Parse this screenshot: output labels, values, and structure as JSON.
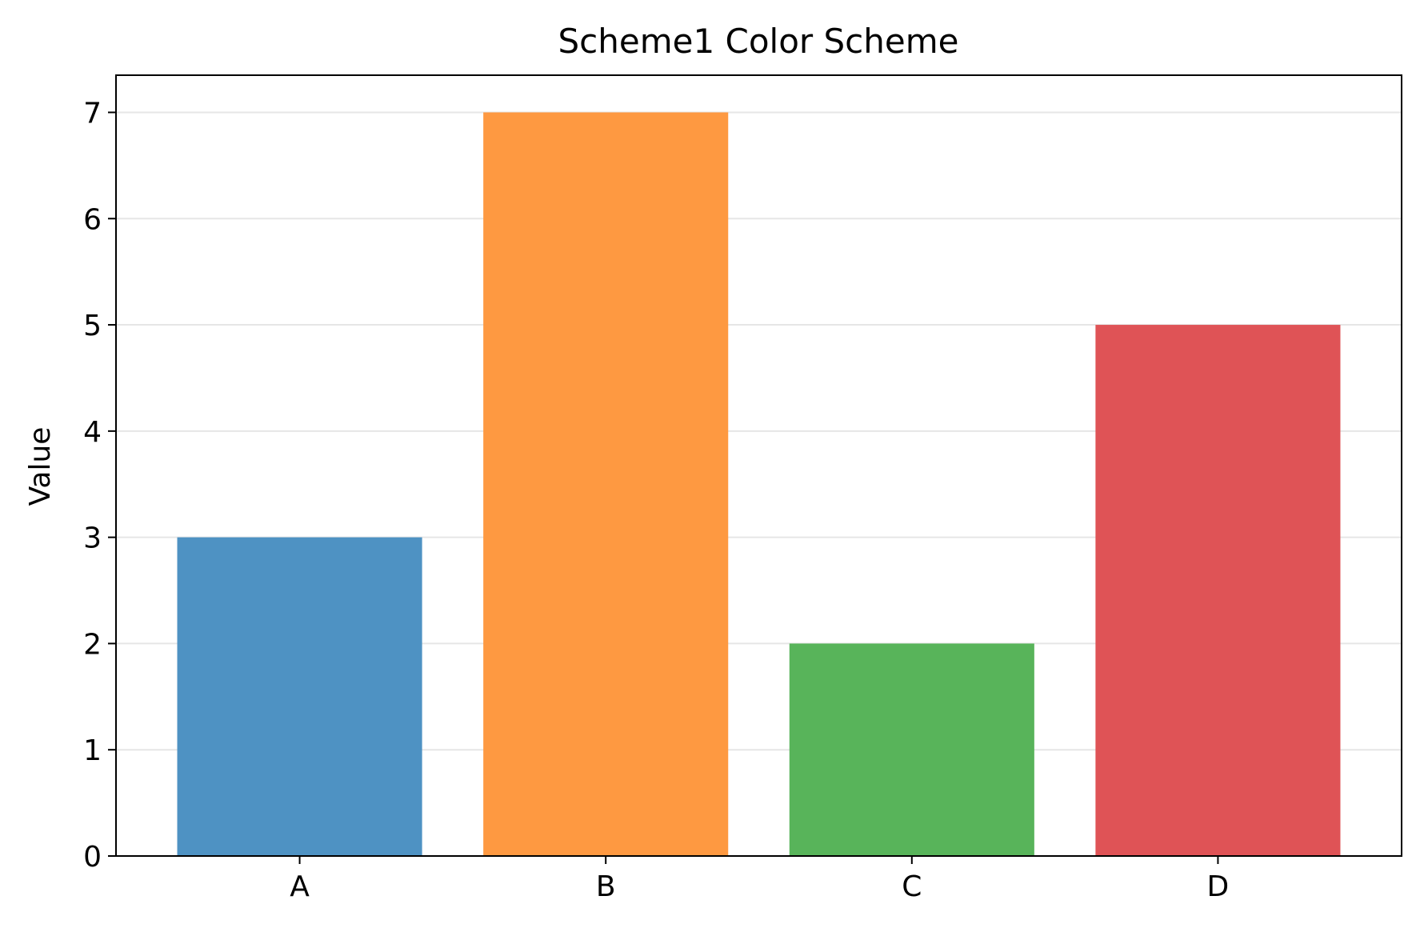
{
  "chart_data": {
    "type": "bar",
    "title": "Scheme1 Color Scheme",
    "xlabel": "",
    "ylabel": "Value",
    "categories": [
      "A",
      "B",
      "C",
      "D"
    ],
    "values": [
      3,
      7,
      2,
      5
    ],
    "colors": [
      "#4e92c3",
      "#fe9941",
      "#58b45a",
      "#df5356"
    ],
    "ylim": [
      0,
      7.35
    ],
    "yticks": [
      0,
      1,
      2,
      3,
      4,
      5,
      6,
      7
    ],
    "grid": "y",
    "grid_color": "#e6e6e6",
    "legend": "none"
  }
}
